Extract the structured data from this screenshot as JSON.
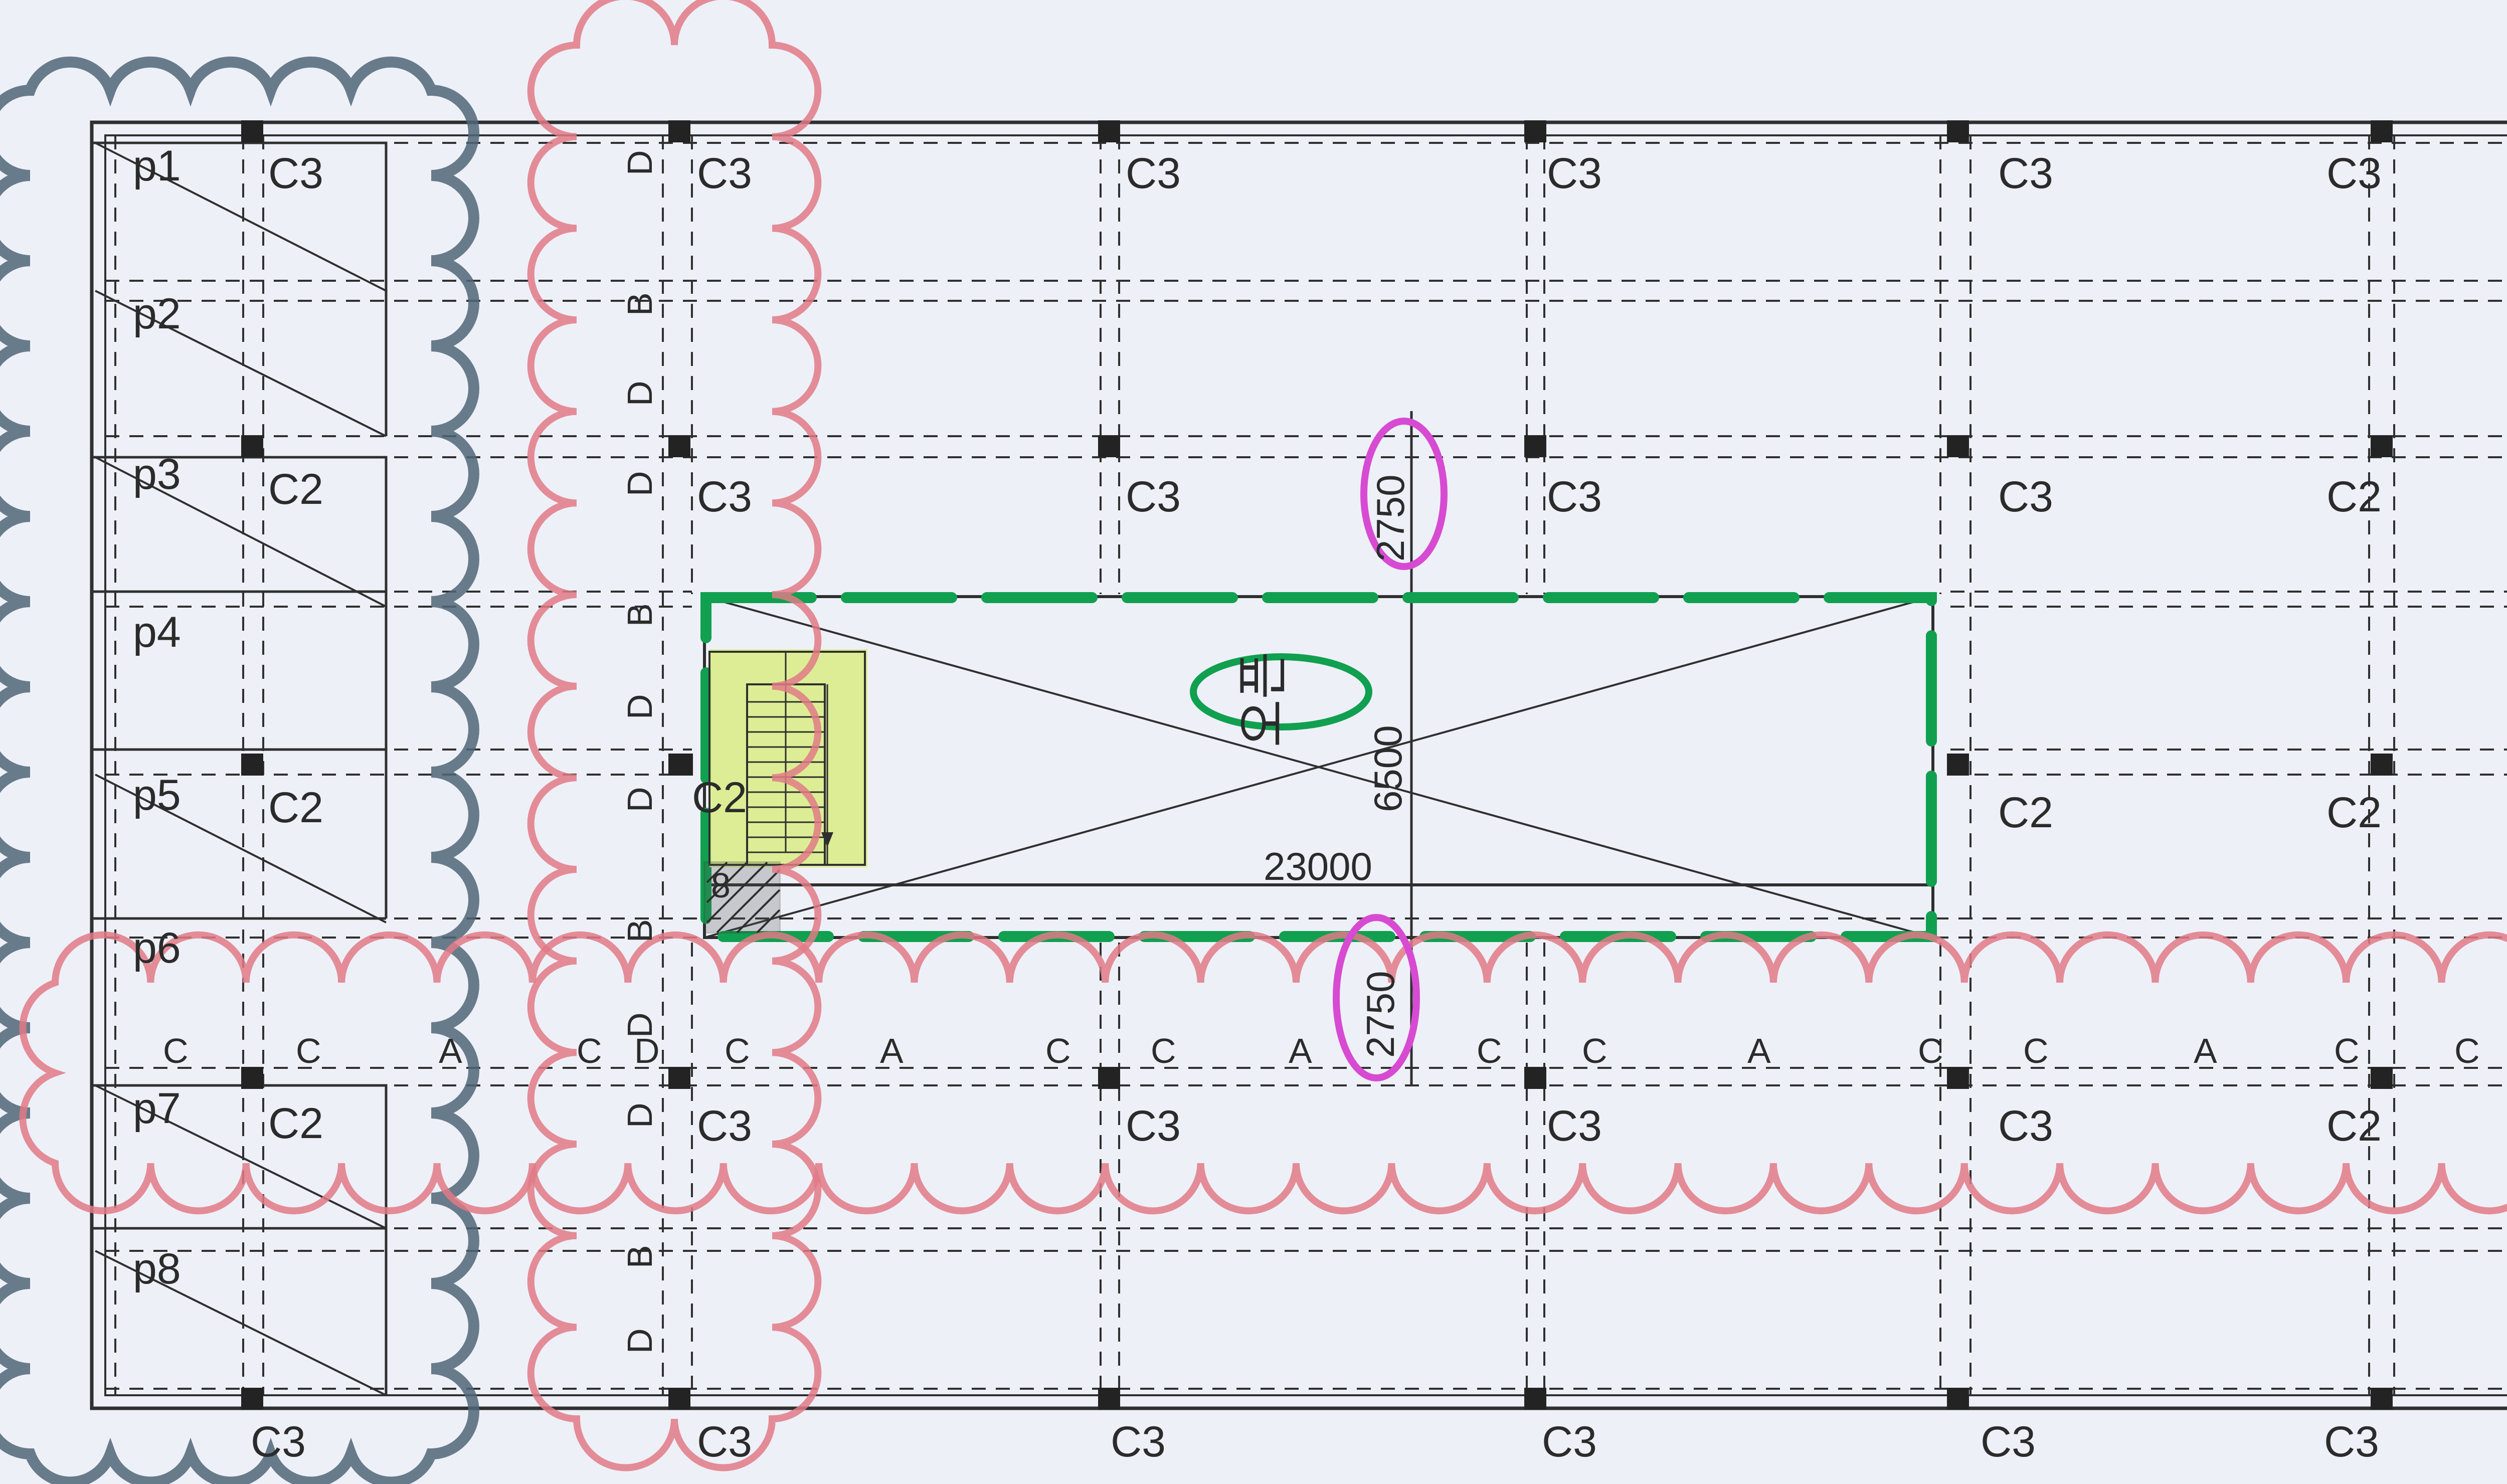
{
  "drawing": {
    "top_row_columns": [
      "C3",
      "C3",
      "C3",
      "C3",
      "C3"
    ],
    "row2_columns": [
      "C3",
      "C3",
      "C3",
      "C3",
      "C2"
    ],
    "row3_right_columns": [
      "C2",
      "C2"
    ],
    "opening_corner_column": "C2",
    "lower_row_columns": [
      "C3",
      "C3",
      "C3",
      "C3",
      "C2"
    ],
    "bottom_row_columns": [
      "C3",
      "C3",
      "C3",
      "C3",
      "C3",
      "C3"
    ],
    "left_bay_columns": [
      "C3",
      "C2",
      "C2",
      "C2"
    ],
    "panels": [
      "p1",
      "p2",
      "p3",
      "p4",
      "p5",
      "p6",
      "p7",
      "p8"
    ],
    "vertical_beams": [
      "D",
      "B",
      "D",
      "D",
      "B",
      "D",
      "D",
      "B",
      "D",
      "D",
      "B",
      "D"
    ],
    "horizontal_beams": [
      "C",
      "C",
      "A",
      "C",
      "D",
      "C",
      "A",
      "C",
      "C",
      "A",
      "C",
      "C",
      "A",
      "C",
      "C",
      "A",
      "C",
      "C"
    ],
    "dimensions": {
      "top_span": "2750",
      "bottom_span": "2750",
      "opening_height": "6500",
      "opening_width": "23000"
    },
    "opening_label": "오픈",
    "stair_mark": "8"
  },
  "colors": {
    "background": "#eef0f8",
    "grid_line": "#2f2f2f",
    "column": "#232323",
    "red_cloud": "#e07a86",
    "slate_cloud": "#4f6678",
    "green_mark": "#10a050",
    "magenta_mark": "#d64bd2",
    "stair_fill": "#d9ec8a"
  }
}
